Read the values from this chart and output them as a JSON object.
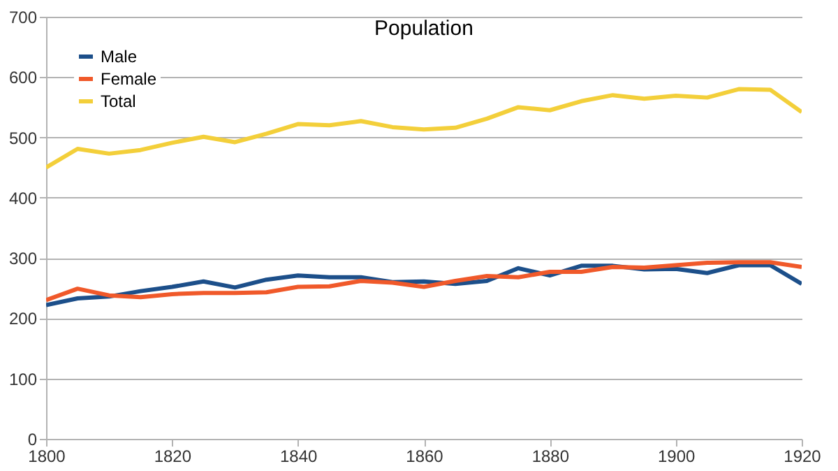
{
  "chart_data": {
    "type": "line",
    "title": "Population",
    "x": [
      1800,
      1805,
      1810,
      1815,
      1820,
      1825,
      1830,
      1835,
      1840,
      1845,
      1850,
      1855,
      1860,
      1865,
      1870,
      1875,
      1880,
      1885,
      1890,
      1895,
      1900,
      1905,
      1910,
      1915,
      1920
    ],
    "series": [
      {
        "name": "Male",
        "color": "#1c4f8a",
        "values": [
          222,
          233,
          236,
          245,
          252,
          261,
          251,
          264,
          271,
          268,
          268,
          260,
          261,
          257,
          262,
          283,
          271,
          287,
          287,
          281,
          282,
          275,
          288,
          288,
          257
        ]
      },
      {
        "name": "Female",
        "color": "#f0592a",
        "values": [
          230,
          249,
          238,
          235,
          240,
          242,
          242,
          243,
          252,
          253,
          262,
          259,
          252,
          262,
          270,
          268,
          277,
          277,
          285,
          284,
          288,
          292,
          293,
          293,
          285
        ]
      },
      {
        "name": "Total",
        "color": "#f3cf3a",
        "values": [
          450,
          481,
          473,
          479,
          491,
          501,
          492,
          506,
          522,
          520,
          527,
          517,
          513,
          516,
          531,
          550,
          545,
          560,
          570,
          564,
          569,
          566,
          580,
          579,
          542
        ]
      }
    ],
    "xlim": [
      1800,
      1920
    ],
    "xticks": [
      1800,
      1820,
      1840,
      1860,
      1880,
      1900,
      1920
    ],
    "ylim": [
      0,
      700
    ],
    "yticks": [
      0,
      100,
      200,
      300,
      400,
      500,
      600,
      700
    ],
    "grid": "y",
    "legend": "top left",
    "marker": "none",
    "line_style": "solid"
  }
}
